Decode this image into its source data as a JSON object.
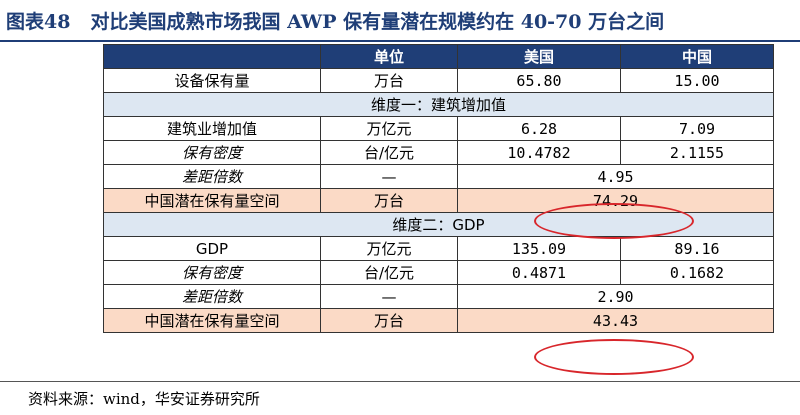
{
  "title": {
    "number": "图表48",
    "text": "对比美国成熟市场我国 AWP 保有量潜在规模约在 40-70 万台之间"
  },
  "table": {
    "header": [
      "",
      "单位",
      "美国",
      "中国"
    ],
    "row_fleet": {
      "label": "设备保有量",
      "unit": "万台",
      "us": "65.80",
      "cn": "15.00"
    },
    "section1": "维度一：建筑增加值",
    "row_value_added": {
      "label": "建筑业增加值",
      "unit": "万亿元",
      "us": "6.28",
      "cn": "7.09"
    },
    "row_density1": {
      "label": "保有密度",
      "unit": "台/亿元",
      "us": "10.4782",
      "cn": "2.1155"
    },
    "row_gap1": {
      "label": "差距倍数",
      "unit": "—",
      "value": "4.95"
    },
    "row_potential1": {
      "label": "中国潜在保有量空间",
      "unit": "万台",
      "value": "74.29"
    },
    "section2": "维度二：GDP",
    "row_gdp": {
      "label": "GDP",
      "unit": "万亿元",
      "us": "135.09",
      "cn": "89.16"
    },
    "row_density2": {
      "label": "保有密度",
      "unit": "台/亿元",
      "us": "0.4871",
      "cn": "0.1682"
    },
    "row_gap2": {
      "label": "差距倍数",
      "unit": "—",
      "value": "2.90"
    },
    "row_potential2": {
      "label": "中国潜在保有量空间",
      "unit": "万台",
      "value": "43.43"
    }
  },
  "source": "资料来源：wind，华安证券研究所",
  "colors": {
    "title": "#1f3e77",
    "header_bg": "#1f3e77",
    "section_bg": "#dde7f2",
    "highlight_bg": "#fbdac6",
    "circle": "#d8262b"
  }
}
